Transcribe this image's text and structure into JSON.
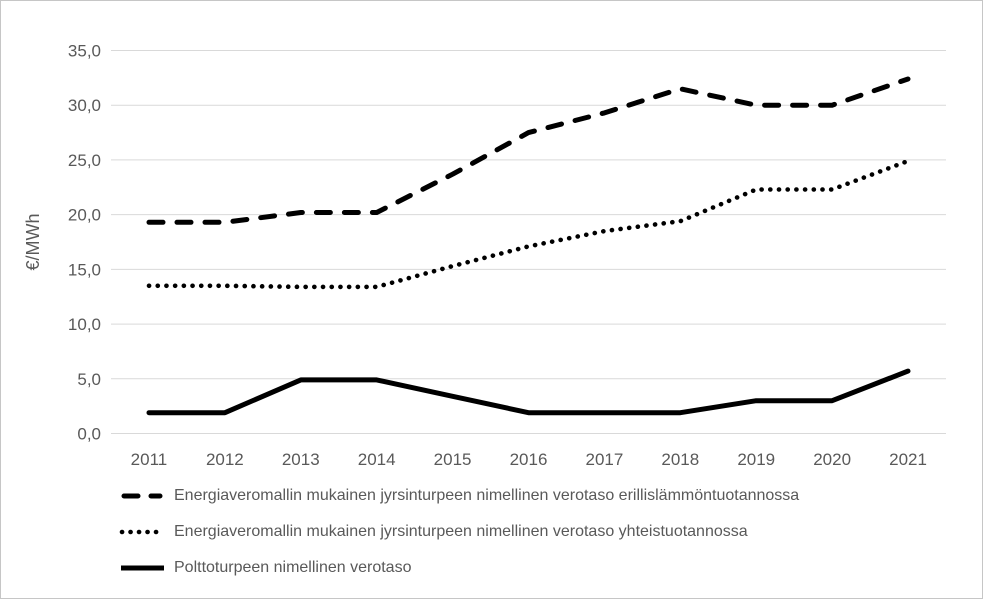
{
  "chart_data": {
    "type": "line",
    "title": "",
    "xlabel": "",
    "ylabel": "€/MWh",
    "categories": [
      "2011",
      "2012",
      "2013",
      "2014",
      "2015",
      "2016",
      "2017",
      "2018",
      "2019",
      "2020",
      "2021"
    ],
    "series": [
      {
        "name": "Energiaveromallin mukainen jyrsinturpeen nimellinen verotaso erillislämmöntuotannossa",
        "style": "dashed",
        "values": [
          19.3,
          19.3,
          20.2,
          20.2,
          23.7,
          27.5,
          29.3,
          31.5,
          30.0,
          30.0,
          32.4
        ]
      },
      {
        "name": "Energiaveromallin mukainen jyrsinturpeen nimellinen verotaso yhteistuotannossa",
        "style": "dotted",
        "values": [
          13.5,
          13.5,
          13.4,
          13.4,
          15.3,
          17.1,
          18.5,
          19.4,
          22.3,
          22.3,
          24.9
        ]
      },
      {
        "name": "Polttoturpeen nimellinen verotaso",
        "style": "solid",
        "values": [
          1.9,
          1.9,
          4.9,
          4.9,
          3.4,
          1.9,
          1.9,
          1.9,
          3.0,
          3.0,
          5.7
        ]
      }
    ],
    "ylim": [
      0,
      35
    ],
    "ytick_step": 5,
    "ytick_labels": [
      "0,0",
      "5,0",
      "10,0",
      "15,0",
      "20,0",
      "25,0",
      "30,0",
      "35,0"
    ],
    "grid": true,
    "legend_position": "bottom-left"
  },
  "colors": {
    "line": "#000000",
    "grid": "#d9d9d9",
    "axis_text": "#595959",
    "background": "#ffffff",
    "border": "#c6c6c6"
  }
}
